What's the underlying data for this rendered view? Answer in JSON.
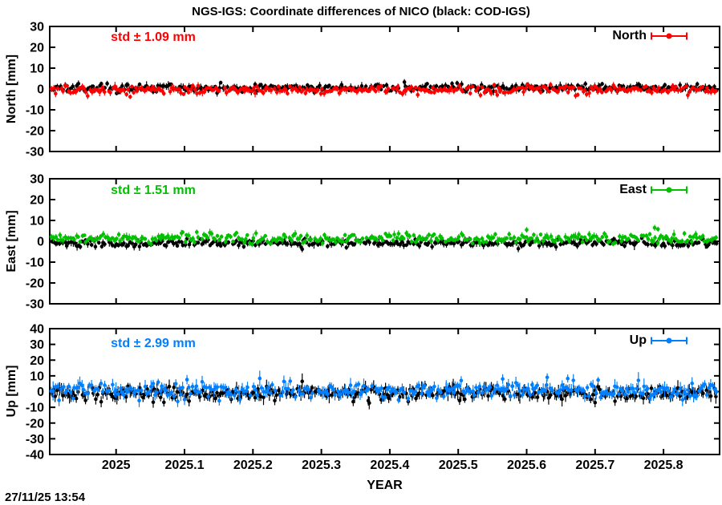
{
  "title": "NGS-IGS: Coordinate differences of NICO (black: COD-IGS)",
  "timestamp": "27/11/25 13:54",
  "xlabel": "YEAR",
  "x_axis": {
    "min": 2024.903,
    "max": 2025.882,
    "ticks": [
      2025.0,
      2025.1,
      2025.2,
      2025.3,
      2025.4,
      2025.5,
      2025.6,
      2025.7,
      2025.8
    ],
    "tick_labels": [
      "2025",
      "2025.1",
      "2025.2",
      "2025.3",
      "2025.4",
      "2025.5",
      "2025.6",
      "2025.7",
      "2025.8"
    ]
  },
  "chart_data": [
    {
      "type": "scatter",
      "panel": "North",
      "ylabel": "North [mm]",
      "std_label": "std ± 1.09 mm",
      "std_mm": 1.09,
      "accent": "#ff0000",
      "legend_label": "North",
      "ylim": [
        -30,
        30
      ],
      "yticks": [
        30,
        20,
        10,
        0,
        -10,
        -20,
        -30
      ],
      "ytick_labels": [
        "30",
        "20",
        "10",
        "0",
        "-10",
        "-20",
        "-30"
      ],
      "x_start": 2024.906,
      "x_end": 2025.88,
      "n_points": 350,
      "clamp": [
        -4.2,
        4.2
      ],
      "series": [
        {
          "name": "COD-IGS",
          "color": "#000000",
          "mean": 0.5,
          "spread": 0.9,
          "ebar": [
            0.9,
            0.5
          ],
          "seed": 11,
          "outliers": []
        },
        {
          "name": "NGS-IGS",
          "color": "#ff0000",
          "mean": -0.4,
          "spread": 1.0,
          "ebar": [
            0.9,
            0.5
          ],
          "seed": 22,
          "outliers": []
        }
      ]
    },
    {
      "type": "scatter",
      "panel": "East",
      "ylabel": "East [mm]",
      "std_label": "std ± 1.51 mm",
      "std_mm": 1.51,
      "accent": "#00c000",
      "legend_label": "East",
      "ylim": [
        -30,
        30
      ],
      "yticks": [
        30,
        20,
        10,
        0,
        -10,
        -20,
        -30
      ],
      "ytick_labels": [
        "30",
        "20",
        "10",
        "0",
        "-10",
        "-20",
        "-30"
      ],
      "x_start": 2024.906,
      "x_end": 2025.88,
      "n_points": 350,
      "clamp": [
        -4.2,
        6.8
      ],
      "series": [
        {
          "name": "COD-IGS",
          "color": "#000000",
          "mean": -0.9,
          "spread": 0.85,
          "ebar": [
            0.9,
            0.5
          ],
          "seed": 33,
          "outliers": [
            {
              "x": 2025.272,
              "y": -3.8,
              "e": 1.5
            }
          ]
        },
        {
          "name": "NGS-IGS",
          "color": "#00c000",
          "mean": 1.4,
          "spread": 1.2,
          "ebar": [
            0.9,
            0.5
          ],
          "seed": 44,
          "outliers": [
            {
              "x": 2025.6,
              "y": 5.5,
              "e": 1.3
            },
            {
              "x": 2025.787,
              "y": 6.5,
              "e": 1.4
            },
            {
              "x": 2025.792,
              "y": 5.8,
              "e": 1.2
            }
          ]
        }
      ]
    },
    {
      "type": "scatter",
      "panel": "Up",
      "ylabel": "Up [mm]",
      "std_label": "std ± 2.99 mm",
      "std_mm": 2.99,
      "accent": "#0080ff",
      "legend_label": "Up",
      "ylim": [
        -40,
        40
      ],
      "yticks": [
        40,
        30,
        20,
        10,
        0,
        -10,
        -20,
        -30,
        -40
      ],
      "ytick_labels": [
        "40",
        "30",
        "20",
        "10",
        "0",
        "-10",
        "-20",
        "-30",
        "-40"
      ],
      "x_start": 2024.906,
      "x_end": 2025.88,
      "n_points": 350,
      "clamp": [
        -8.5,
        8.5
      ],
      "series": [
        {
          "name": "COD-IGS",
          "color": "#000000",
          "mean": -1.1,
          "spread": 2.2,
          "ebar": [
            2.0,
            1.2
          ],
          "seed": 55,
          "outliers": [
            {
              "x": 2025.272,
              "y": 6.5,
              "e": 5.0
            },
            {
              "x": 2025.7,
              "y": -7.0,
              "e": 3.0
            }
          ]
        },
        {
          "name": "NGS-IGS",
          "color": "#0080ff",
          "mean": 0.7,
          "spread": 2.6,
          "ebar": [
            2.0,
            1.2
          ],
          "seed": 66,
          "outliers": [
            {
              "x": 2025.565,
              "y": 8.0,
              "e": 3.0
            },
            {
              "x": 2025.63,
              "y": 9.0,
              "e": 2.6
            },
            {
              "x": 2025.66,
              "y": 8.3,
              "e": 2.6
            }
          ]
        }
      ]
    }
  ]
}
